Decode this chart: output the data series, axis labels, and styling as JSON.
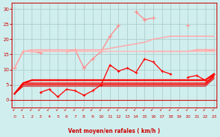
{
  "x": [
    0,
    1,
    2,
    3,
    4,
    5,
    6,
    7,
    8,
    9,
    10,
    11,
    12,
    13,
    14,
    15,
    16,
    17,
    18,
    19,
    20,
    21,
    22,
    23
  ],
  "series": [
    {
      "name": "rafales_scatter",
      "color": "#ff8888",
      "lw": 1.0,
      "marker": "+",
      "ms": 4,
      "connect": true,
      "y": [
        10.5,
        16.0,
        16.0,
        15.5,
        null,
        null,
        16.0,
        16.5,
        10.5,
        13.5,
        16.0,
        21.0,
        24.5,
        null,
        29.0,
        26.5,
        27.0,
        null,
        null,
        null,
        24.5,
        null,
        16.5,
        16.5
      ]
    },
    {
      "name": "rafales_trend_upper",
      "color": "#ffaaaa",
      "lw": 1.2,
      "marker": null,
      "ms": 0,
      "connect": true,
      "y": [
        10.5,
        16.0,
        16.5,
        16.5,
        16.5,
        16.5,
        16.5,
        16.5,
        16.5,
        16.5,
        16.5,
        17.0,
        17.5,
        18.0,
        18.5,
        19.0,
        20.0,
        20.5,
        21.0,
        21.0,
        21.0,
        21.0,
        21.0,
        21.0
      ]
    },
    {
      "name": "rafales_flat",
      "color": "#ffaaaa",
      "lw": 1.5,
      "marker": "+",
      "ms": 3,
      "connect": true,
      "y": [
        null,
        null,
        null,
        null,
        null,
        null,
        null,
        null,
        null,
        null,
        null,
        null,
        null,
        null,
        null,
        16.0,
        16.0,
        16.0,
        16.0,
        16.0,
        16.0,
        16.5,
        16.5,
        16.5
      ]
    },
    {
      "name": "rafales_flat2",
      "color": "#ffbbbb",
      "lw": 1.2,
      "marker": null,
      "ms": 0,
      "connect": true,
      "y": [
        null,
        16.0,
        16.0,
        16.0,
        16.0,
        16.0,
        16.0,
        16.0,
        16.0,
        16.0,
        16.0,
        16.0,
        16.0,
        16.0,
        16.0,
        16.0,
        16.0,
        16.0,
        16.0,
        16.0,
        16.0,
        16.0,
        16.0,
        16.0
      ]
    },
    {
      "name": "moyen_scatter",
      "color": "#ff0000",
      "lw": 1.0,
      "marker": "+",
      "ms": 3,
      "connect": true,
      "y": [
        null,
        null,
        null,
        2.5,
        3.5,
        1.0,
        3.5,
        3.0,
        1.5,
        3.0,
        5.0,
        11.5,
        9.5,
        10.5,
        9.0,
        13.5,
        12.5,
        9.5,
        8.5,
        null,
        7.5,
        8.0,
        6.5,
        8.5
      ]
    },
    {
      "name": "moyen_line1",
      "color": "#ff0000",
      "lw": 1.8,
      "marker": null,
      "ms": 0,
      "connect": true,
      "y": [
        2.0,
        5.5,
        6.5,
        6.5,
        6.5,
        6.5,
        6.5,
        6.5,
        6.5,
        6.5,
        6.5,
        6.5,
        6.5,
        6.5,
        6.5,
        6.5,
        6.5,
        6.5,
        6.5,
        6.5,
        6.5,
        6.5,
        6.5,
        8.5
      ]
    },
    {
      "name": "moyen_line2",
      "color": "#ff0000",
      "lw": 1.3,
      "marker": null,
      "ms": 0,
      "connect": true,
      "y": [
        2.0,
        5.5,
        5.5,
        5.5,
        5.5,
        5.5,
        5.5,
        5.5,
        5.5,
        5.5,
        5.5,
        5.5,
        5.5,
        5.5,
        5.5,
        5.5,
        5.5,
        5.5,
        5.5,
        5.5,
        5.5,
        5.5,
        5.5,
        8.0
      ]
    },
    {
      "name": "moyen_line3",
      "color": "#ff0000",
      "lw": 1.0,
      "marker": null,
      "ms": 0,
      "connect": true,
      "y": [
        2.0,
        5.0,
        5.0,
        5.0,
        5.0,
        5.0,
        5.0,
        5.0,
        5.0,
        5.0,
        5.0,
        5.0,
        5.0,
        5.0,
        5.0,
        5.0,
        5.0,
        5.0,
        5.0,
        5.0,
        5.0,
        5.0,
        5.0,
        7.5
      ]
    },
    {
      "name": "moyen_line4",
      "color": "#dd0000",
      "lw": 0.8,
      "marker": null,
      "ms": 0,
      "connect": true,
      "y": [
        2.0,
        4.5,
        4.5,
        4.5,
        4.5,
        4.5,
        4.5,
        4.5,
        4.5,
        4.5,
        4.5,
        4.5,
        4.5,
        4.5,
        4.5,
        4.5,
        4.5,
        4.5,
        4.5,
        4.5,
        4.5,
        4.5,
        4.5,
        7.0
      ]
    }
  ],
  "xlabel": "Vent moyen/en rafales ( km/h )",
  "ylim": [
    -2.5,
    32
  ],
  "xlim": [
    -0.3,
    23.3
  ],
  "yticks": [
    0,
    5,
    10,
    15,
    20,
    25,
    30
  ],
  "xticks": [
    0,
    1,
    2,
    3,
    4,
    5,
    6,
    7,
    8,
    9,
    10,
    11,
    12,
    13,
    14,
    15,
    16,
    17,
    18,
    19,
    20,
    21,
    22,
    23
  ],
  "bg_color": "#d0eeee",
  "grid_color": "#aacccc",
  "axis_color": "#cc0000",
  "tick_color": "#cc0000",
  "label_color": "#cc0000",
  "arrow_color": "#cc0000"
}
